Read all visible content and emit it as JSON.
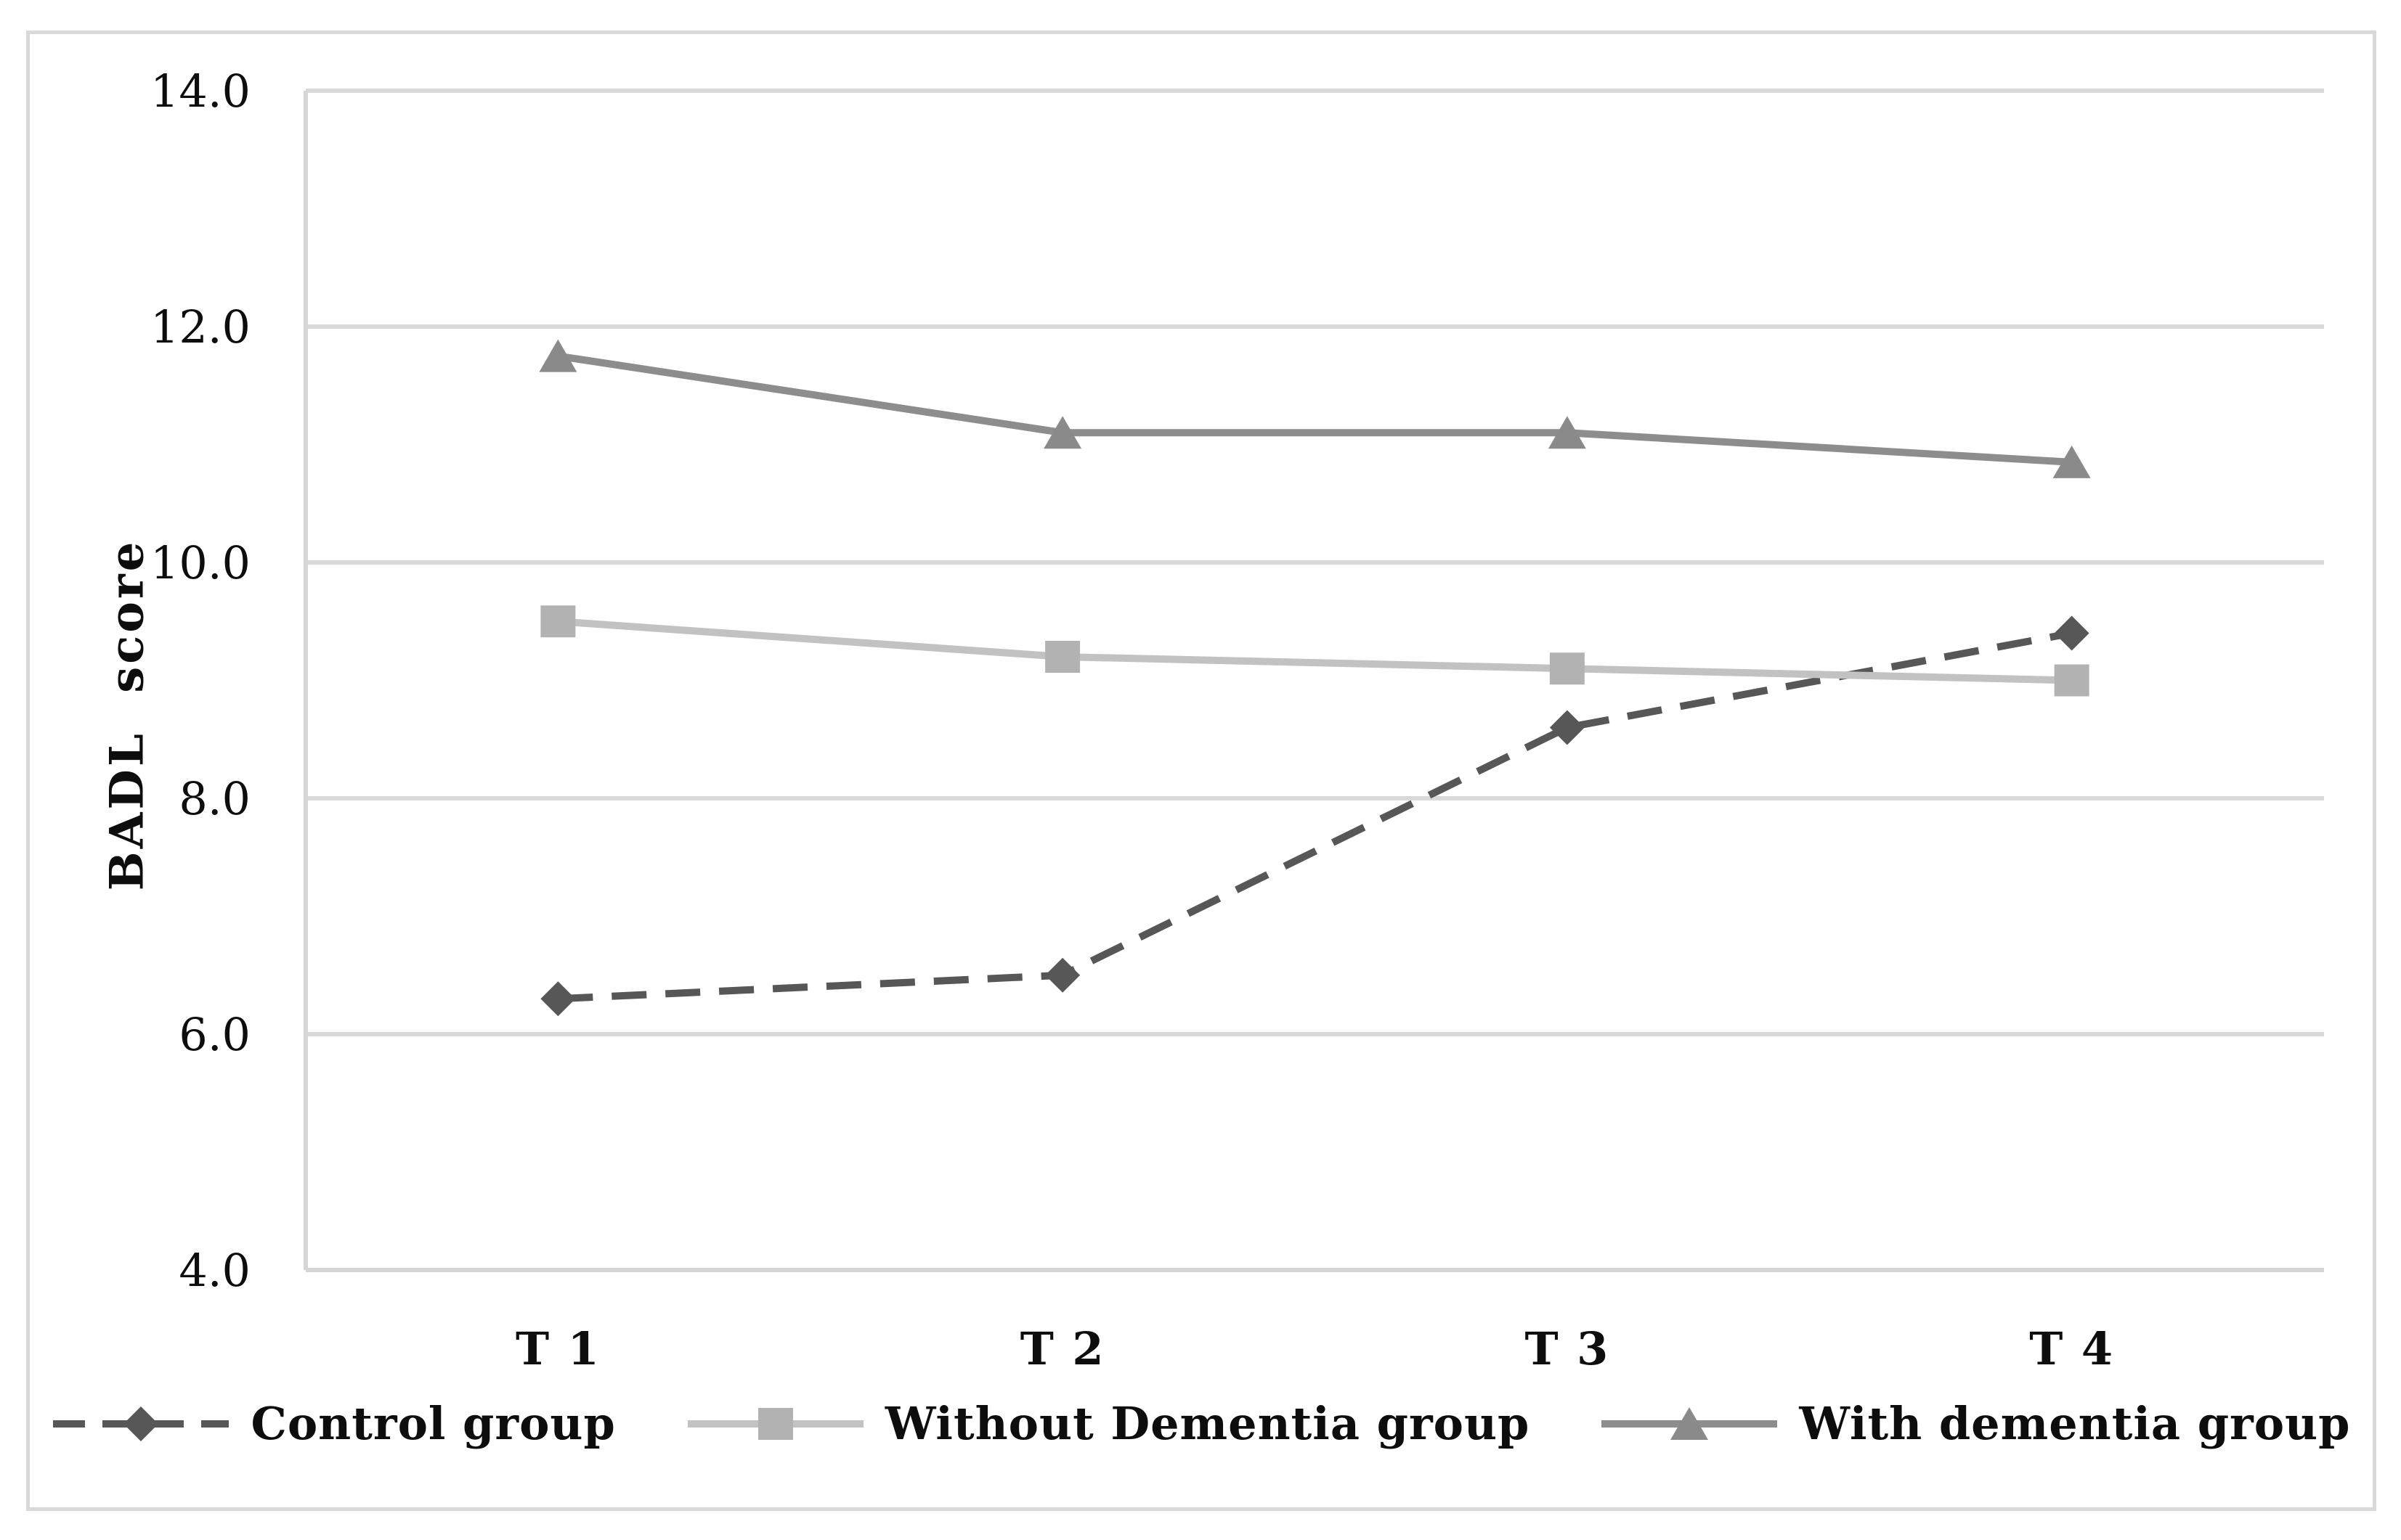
{
  "figure": {
    "background": "#ffffff",
    "frame_border_color": "#d9d9d9"
  },
  "colors": {
    "grid": "#d9d9d9",
    "axis": "#d6d6d6",
    "text": "#0d0d0d",
    "control_line": "#575757",
    "control_marker": "#575757",
    "without_dementia_line": "#c2c2c2",
    "without_dementia_marker": "#b2b2b2",
    "with_dementia_line": "#8d8d8d",
    "with_dementia_marker": "#8a8a8a"
  },
  "chart_data": {
    "type": "line",
    "categories": [
      "T 1",
      "T 2",
      "T 3",
      "T 4"
    ],
    "series": [
      {
        "key": "control",
        "name": "Control group",
        "marker": "diamond",
        "line_style": "dashed",
        "values": [
          6.3,
          6.5,
          8.6,
          9.4
        ]
      },
      {
        "key": "without_dementia",
        "name": "Without Dementia group",
        "marker": "square",
        "line_style": "solid",
        "values": [
          9.5,
          9.2,
          9.1,
          9.0
        ]
      },
      {
        "key": "with_dementia",
        "name": "With dementia group",
        "marker": "triangle",
        "line_style": "solid",
        "values": [
          11.75,
          11.1,
          11.1,
          10.85
        ]
      }
    ],
    "xlabel": "",
    "ylabel": "BADL score",
    "ylim": [
      4.0,
      14.0
    ],
    "y_ticks": [
      14.0,
      12.0,
      10.0,
      8.0,
      6.0,
      4.0
    ],
    "y_tick_labels": [
      "14.0",
      "12.0",
      "10.0",
      "8.0",
      "6.0",
      "4.0"
    ],
    "grid": "horizontal",
    "legend_position": "bottom"
  }
}
